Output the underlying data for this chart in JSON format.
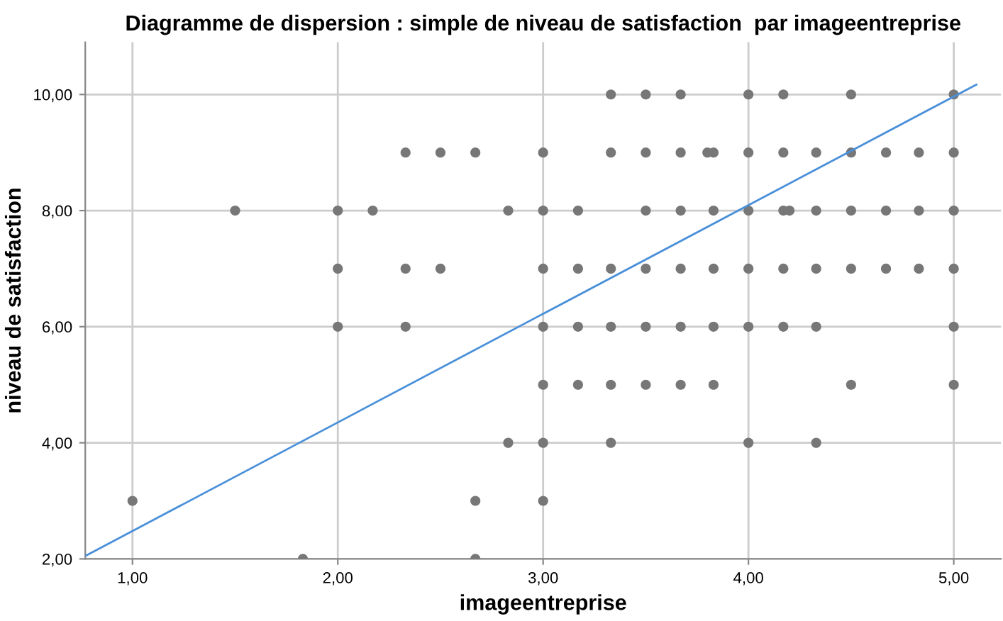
{
  "chart_data": {
    "type": "scatter",
    "title": "Diagramme de dispersion : simple de niveau de satisfaction  par imageentreprise",
    "xlabel": "imageentreprise",
    "ylabel": "niveau de satisfaction",
    "xlim": [
      0.77,
      5.23
    ],
    "ylim": [
      2,
      10.9
    ],
    "xticks": [
      {
        "value": 1,
        "label": "1,00"
      },
      {
        "value": 2,
        "label": "2,00"
      },
      {
        "value": 3,
        "label": "3,00"
      },
      {
        "value": 4,
        "label": "4,00"
      },
      {
        "value": 5,
        "label": "5,00"
      }
    ],
    "yticks": [
      {
        "value": 2,
        "label": "2,00"
      },
      {
        "value": 4,
        "label": "4,00"
      },
      {
        "value": 6,
        "label": "6,00"
      },
      {
        "value": 8,
        "label": "8,00"
      },
      {
        "value": 10,
        "label": "10,00"
      }
    ],
    "grid": true,
    "series": [
      {
        "marker": "circle",
        "color": "#777777",
        "x": [
          1.5,
          2.33,
          2.5,
          2.67,
          3.0,
          2.0,
          2.17,
          2.83,
          3.0,
          2.0,
          2.33,
          2.5,
          3.0,
          2.0,
          2.33,
          3.0,
          3.0,
          2.83,
          3.0,
          1.0,
          2.67,
          3.0,
          1.83,
          2.67,
          3.33,
          3.5,
          3.67,
          4.0,
          4.17,
          4.5,
          5.0,
          3.33,
          3.5,
          3.67,
          3.8,
          3.83,
          4.0,
          4.17,
          4.33,
          4.5,
          4.67,
          4.83,
          5.0,
          3.17,
          3.5,
          3.67,
          3.83,
          4.0,
          4.17,
          4.2,
          4.33,
          4.5,
          4.67,
          4.83,
          5.0,
          3.17,
          3.33,
          3.5,
          3.67,
          3.83,
          4.0,
          4.17,
          4.33,
          4.5,
          4.67,
          4.83,
          5.0,
          3.17,
          3.33,
          3.5,
          3.67,
          3.83,
          4.0,
          4.17,
          4.33,
          5.0,
          3.17,
          3.33,
          3.5,
          3.67,
          3.83,
          4.5,
          5.0,
          3.33,
          4.0,
          4.33
        ],
        "values": [
          8,
          9,
          9,
          9,
          9,
          8,
          8,
          8,
          8,
          7,
          7,
          7,
          7,
          6,
          6,
          6,
          5,
          4,
          4,
          3,
          3,
          3,
          2,
          2,
          10,
          10,
          10,
          10,
          10,
          10,
          10,
          9,
          9,
          9,
          9,
          9,
          9,
          9,
          9,
          9,
          9,
          9,
          9,
          8,
          8,
          8,
          8,
          8,
          8,
          8,
          8,
          8,
          8,
          8,
          8,
          7,
          7,
          7,
          7,
          7,
          7,
          7,
          7,
          7,
          7,
          7,
          7,
          6,
          6,
          6,
          6,
          6,
          6,
          6,
          6,
          6,
          5,
          5,
          5,
          5,
          5,
          5,
          5,
          4,
          4,
          4
        ]
      },
      {
        "type": "line",
        "marker": "none",
        "color": "#4a90d9",
        "x": [
          0.77,
          5.11
        ],
        "values": [
          2.05,
          10.17
        ]
      }
    ]
  }
}
